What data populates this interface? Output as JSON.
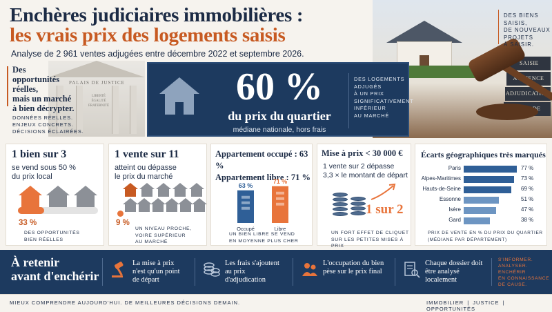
{
  "header": {
    "title_line1": "Enchères judiciaires immobilières :",
    "title_line2": "les vrais prix des logements saisis",
    "subtitle": "Analyse de 2 961 ventes adjugées entre décembre 2022 et septembre 2026."
  },
  "corner_note": [
    "DES BIENS",
    "SAISIS,",
    "DE NOUVEAUX",
    "PROJETS",
    "À SAISIR."
  ],
  "photo": {
    "books": [
      "SAISIE",
      "AUDIENCE",
      "ADJUDICATION",
      "TITRE DE"
    ]
  },
  "courthouse": {
    "sign": "PALAIS DE JUSTICE",
    "motto": [
      "LIBERTÉ",
      "ÉGALITÉ",
      "FRATERNITÉ"
    ]
  },
  "intro": {
    "lines": [
      "Des",
      "opportunités",
      "réelles,",
      "mais un marché",
      "à bien décrypter."
    ],
    "small": [
      "DONNÉES RÉELLES.",
      "ENJEUX CONCRETS.",
      "DÉCISIONS ÉCLAIRÉES."
    ]
  },
  "hero": {
    "value": "60 %",
    "line": "du prix du quartier",
    "sub": "médiane nationale, hors frais",
    "note": [
      "DES LOGEMENTS",
      "ADJUGÉS",
      "À UN PRIX",
      "SIGNIFICATIVEMENT",
      "INFÉRIEUR",
      "AU MARCHÉ"
    ]
  },
  "card1": {
    "big": "1 bien sur 3",
    "text": [
      "se vend sous 50 %",
      "du prix local"
    ],
    "pct": "33 %",
    "progress": 0.33,
    "note": [
      "DES OPPORTUNITÉS",
      "BIEN RÉELLES"
    ]
  },
  "card2": {
    "big": "1 vente sur 11",
    "text": [
      "atteint ou dépasse",
      "le prix du marché"
    ],
    "pct": "9 %",
    "note": [
      "UN NIVEAU PROCHE,",
      "VOIRE SUPÉRIEUR",
      "AU MARCHÉ"
    ]
  },
  "card3": {
    "line1": "Appartement occupé : 63 %",
    "line2": "Appartement libre : 71 %",
    "note": [
      "UN BIEN LIBRE SE VEND",
      "EN MOYENNE PLUS CHER"
    ]
  },
  "card4": {
    "big": "Mise à prix < 30 000 €",
    "text": [
      "1 vente sur 2 dépasse",
      "3,3 × le montant de départ"
    ],
    "ratio": "1 sur 2",
    "note": [
      "UN FORT EFFET DE CLIQUET",
      "SUR LES PETITES MISES À PRIX"
    ]
  },
  "card5": {
    "title": "Écarts géographiques très marqués",
    "note": [
      "PRIX DE VENTE EN % DU PRIX DU QUARTIER",
      "(MÉDIANE PAR DÉPARTEMENT)"
    ]
  },
  "chart_data": [
    {
      "type": "bar",
      "categories": [
        "Occupé",
        "Libre"
      ],
      "values": [
        63,
        71
      ],
      "value_labels": [
        "63 %",
        "71 %"
      ],
      "colors": [
        "#2f5f97",
        "#e8743b"
      ]
    },
    {
      "type": "bar",
      "orientation": "horizontal",
      "title": "Écarts géographiques très marqués",
      "categories": [
        "Paris",
        "Alpes-Maritimes",
        "Hauts-de-Seine",
        "Essonne",
        "Isère",
        "Gard"
      ],
      "values": [
        77,
        73,
        69,
        51,
        47,
        38
      ],
      "value_labels": [
        "77 %",
        "73 %",
        "69 %",
        "51 %",
        "47 %",
        "38 %"
      ],
      "xlim": [
        0,
        100
      ]
    }
  ],
  "band": {
    "title": [
      "À retenir",
      "avant d'enchérir"
    ],
    "items": [
      {
        "icon": "gavel-icon",
        "lines": [
          "La mise à prix",
          "n'est qu'un point",
          "de départ"
        ]
      },
      {
        "icon": "coins-icon",
        "lines": [
          "Les frais s'ajoutent",
          "au prix",
          "d'adjudication"
        ]
      },
      {
        "icon": "occupant-icon",
        "lines": [
          "L'occupation du bien",
          "pèse sur le prix final"
        ]
      },
      {
        "icon": "document-search-icon",
        "lines": [
          "Chaque dossier doit",
          "être analysé",
          "localement"
        ]
      }
    ],
    "last": [
      "S'INFORMER.",
      "ANALYSER.",
      "ENCHÉRIR",
      "EN CONNAISSANCE",
      "DE CAUSE."
    ]
  },
  "footer": {
    "left": "MIEUX COMPRENDRE AUJOURD'HUI. DE MEILLEURES DÉCISIONS DEMAIN.",
    "right": "IMMOBILIER  |  JUSTICE  |  OPPORTUNITÉS"
  },
  "colors": {
    "navy": "#1d3a5f",
    "orange": "#c75a22",
    "accent": "#e8743b",
    "bar_blue": "#3f6da3"
  }
}
